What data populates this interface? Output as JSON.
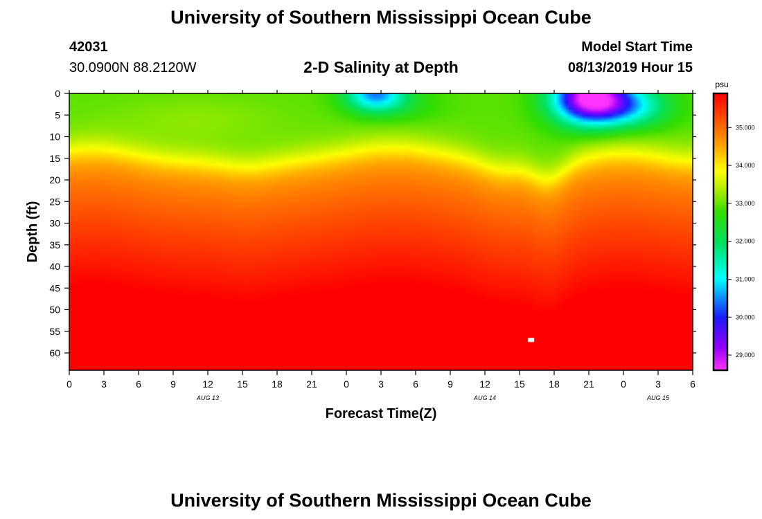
{
  "header": {
    "title": "University of Southern Mississippi Ocean Cube",
    "station_id": "42031",
    "station_coords": "30.0900N 88.2120W",
    "plot_title": "2-D Salinity at Depth",
    "model_label": "Model Start Time",
    "model_time": "08/13/2019 Hour 15"
  },
  "footer": {
    "title": "University of Southern Mississippi Ocean Cube"
  },
  "chart_data": {
    "type": "heatmap",
    "title": "2-D Salinity at Depth",
    "xlabel": "Forecast Time(Z)",
    "ylabel": "Depth (ft)",
    "x_hours_range": [
      0,
      54
    ],
    "x_ticks": [
      {
        "h": 0,
        "label": "0"
      },
      {
        "h": 3,
        "label": "3"
      },
      {
        "h": 6,
        "label": "6"
      },
      {
        "h": 9,
        "label": "9"
      },
      {
        "h": 12,
        "label": "12"
      },
      {
        "h": 15,
        "label": "15"
      },
      {
        "h": 18,
        "label": "18"
      },
      {
        "h": 21,
        "label": "21"
      },
      {
        "h": 24,
        "label": "0"
      },
      {
        "h": 27,
        "label": "3"
      },
      {
        "h": 30,
        "label": "6"
      },
      {
        "h": 33,
        "label": "9"
      },
      {
        "h": 36,
        "label": "12"
      },
      {
        "h": 39,
        "label": "15"
      },
      {
        "h": 42,
        "label": "18"
      },
      {
        "h": 45,
        "label": "21"
      },
      {
        "h": 48,
        "label": "0"
      },
      {
        "h": 51,
        "label": "3"
      },
      {
        "h": 54,
        "label": "6"
      }
    ],
    "day_labels": [
      {
        "h": 12,
        "label": "AUG 13"
      },
      {
        "h": 36,
        "label": "AUG 14"
      },
      {
        "h": 51,
        "label": "AUG 15"
      }
    ],
    "y_range": [
      0,
      64
    ],
    "y_ticks": [
      0,
      5,
      10,
      15,
      20,
      25,
      30,
      35,
      40,
      45,
      50,
      55,
      60
    ],
    "colorbar": {
      "unit": "psu",
      "range": [
        28.6,
        35.9
      ],
      "ticks": [
        {
          "v": 35,
          "label": "35.000"
        },
        {
          "v": 34,
          "label": "34.000"
        },
        {
          "v": 33,
          "label": "33.000"
        },
        {
          "v": 32,
          "label": "32.000"
        },
        {
          "v": 31,
          "label": "31.000"
        },
        {
          "v": 30,
          "label": "30.000"
        },
        {
          "v": 29,
          "label": "29.000"
        }
      ]
    },
    "field_summary": {
      "surface_layer_salinity_psu": 33.0,
      "bottom_salinity_psu": 35.9,
      "halocline_depth_ft": [
        12,
        20
      ],
      "fresh_cores": [
        {
          "hour": 26.5,
          "depth_ft": 1,
          "min_salinity_psu": 30.5
        },
        {
          "hour": 45,
          "depth_ft": 2,
          "min_salinity_psu": 28.7
        }
      ]
    },
    "marker": {
      "hour": 40,
      "depth_ft": 57
    }
  }
}
